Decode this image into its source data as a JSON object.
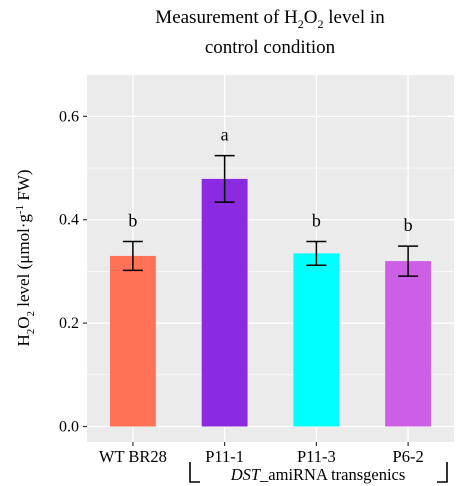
{
  "chart_data": {
    "type": "bar",
    "title_line1_pre": "Measurement of H",
    "title_sub1": "2",
    "title_mid": "O",
    "title_sub2": "2",
    "title_line1_post": " level in",
    "title_line2": "control condition",
    "ylabel_h": "H",
    "ylabel_sub1": "2",
    "ylabel_o": "O",
    "ylabel_sub2": "2",
    "ylabel_rest": " level (μmol·g",
    "ylabel_sup": "-1",
    "ylabel_end": " FW)",
    "categories": [
      "WT BR28",
      "P11-1",
      "P11-3",
      "P6-2"
    ],
    "values": [
      0.33,
      0.479,
      0.335,
      0.32
    ],
    "error_low": [
      0.302,
      0.434,
      0.312,
      0.291
    ],
    "error_high": [
      0.358,
      0.524,
      0.358,
      0.349
    ],
    "significance": [
      "b",
      "a",
      "b",
      "b"
    ],
    "colors": [
      "#ff7256",
      "#8a2be2",
      "#00ffff",
      "#cd5fe6"
    ],
    "ylim": [
      -0.03,
      0.68
    ],
    "yticks": [
      "0.0",
      "0.2",
      "0.4",
      "0.6"
    ],
    "ytick_values": [
      0.0,
      0.2,
      0.4,
      0.6
    ],
    "group_label_italic": "DST",
    "group_label_rest": "_amiRNA transgenics",
    "grid": true,
    "background": "#ebebeb"
  }
}
